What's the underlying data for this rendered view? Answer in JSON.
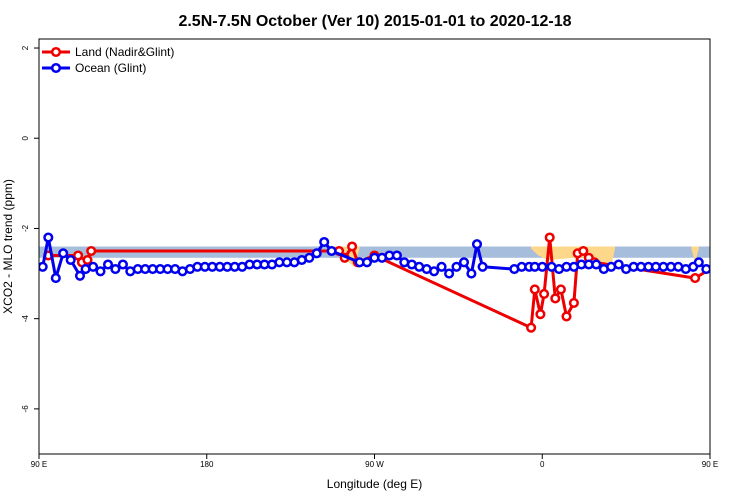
{
  "chart_data": {
    "type": "line",
    "title": "2.5N-7.5N October (Ver 10)   2015-01-01 to 2020-12-18",
    "xlabel": "Longitude (deg E)",
    "ylabel": "XCO2 - MLO trend (ppm)",
    "xlim": [
      90,
      450
    ],
    "ylim": [
      -7,
      2.2
    ],
    "x_ticks": [
      {
        "value": 90,
        "label": "90 E"
      },
      {
        "value": 180,
        "label": "180"
      },
      {
        "value": 270,
        "label": "90 W"
      },
      {
        "value": 360,
        "label": "0"
      },
      {
        "value": 450,
        "label": "90 E"
      },
      {
        "value": 540,
        "label": "180"
      }
    ],
    "y_ticks": [
      {
        "value": 2,
        "label": "2"
      },
      {
        "value": 0,
        "label": "0"
      },
      {
        "value": -2,
        "label": "-2"
      },
      {
        "value": -4,
        "label": "-4"
      },
      {
        "value": -6,
        "label": "-6"
      }
    ],
    "band": {
      "lower": -2.65,
      "upper": -2.4,
      "color": "#a6bddb"
    },
    "band_bulges": [
      {
        "x": [
          248,
          259,
          262
        ],
        "upper": -2.4,
        "lower": [
          -2.45,
          -2.85,
          -2.45
        ],
        "color": "#fdd88a"
      },
      {
        "x": [
          354,
          358,
          363,
          378,
          384,
          397,
          399
        ],
        "upper": -2.4,
        "lower": [
          -2.45,
          -2.6,
          -2.7,
          -2.65,
          -2.65,
          -2.85,
          -2.45
        ],
        "color": "#fdd88a"
      },
      {
        "x": [
          440,
          442,
          444
        ],
        "upper": -2.4,
        "lower": [
          -2.45,
          -2.75,
          -2.45
        ],
        "color": "#fdd88a"
      },
      {
        "x": [
          458,
          462,
          465,
          470
        ],
        "upper": -2.4,
        "lower": [
          -2.45,
          -2.75,
          -2.85,
          -2.45
        ],
        "color": "#fdd88a"
      }
    ],
    "legend": {
      "position": "top-left"
    },
    "grid": false,
    "series": [
      {
        "name": "Land (Nadir&Glint)",
        "color": "#ee0000",
        "points": [
          [
            95,
            -2.6
          ],
          [
            111,
            -2.6
          ],
          [
            113,
            -2.75
          ],
          [
            116,
            -2.7
          ],
          [
            118,
            -2.5
          ],
          [
            251,
            -2.5
          ],
          [
            254,
            -2.65
          ],
          [
            258,
            -2.4
          ],
          [
            261,
            -2.75
          ],
          [
            270,
            -2.6
          ],
          [
            354,
            -4.2
          ],
          [
            356,
            -3.35
          ],
          [
            359,
            -3.9
          ],
          [
            361,
            -3.45
          ],
          [
            364,
            -2.2
          ],
          [
            367,
            -3.55
          ],
          [
            370,
            -3.35
          ],
          [
            373,
            -3.95
          ],
          [
            377,
            -3.65
          ],
          [
            379,
            -2.55
          ],
          [
            382,
            -2.5
          ],
          [
            385,
            -2.65
          ],
          [
            388,
            -2.75
          ],
          [
            442,
            -3.1
          ],
          [
            460,
            -2.65
          ],
          [
            464,
            -2.55
          ],
          [
            467,
            -2.75
          ],
          [
            469,
            -2.5
          ]
        ]
      },
      {
        "name": "Ocean (Glint)",
        "color": "#0000ee",
        "points": [
          [
            92,
            -2.85
          ],
          [
            95,
            -2.2
          ],
          [
            99,
            -3.1
          ],
          [
            103,
            -2.55
          ],
          [
            107,
            -2.7
          ],
          [
            112,
            -3.05
          ],
          [
            115,
            -2.9
          ],
          [
            119,
            -2.85
          ],
          [
            123,
            -2.95
          ],
          [
            127,
            -2.8
          ],
          [
            131,
            -2.9
          ],
          [
            135,
            -2.8
          ],
          [
            139,
            -2.95
          ],
          [
            143,
            -2.9
          ],
          [
            147,
            -2.9
          ],
          [
            151,
            -2.9
          ],
          [
            155,
            -2.9
          ],
          [
            159,
            -2.9
          ],
          [
            163,
            -2.9
          ],
          [
            167,
            -2.95
          ],
          [
            171,
            -2.9
          ],
          [
            175,
            -2.85
          ],
          [
            179,
            -2.85
          ],
          [
            183,
            -2.85
          ],
          [
            187,
            -2.85
          ],
          [
            191,
            -2.85
          ],
          [
            195,
            -2.85
          ],
          [
            199,
            -2.85
          ],
          [
            203,
            -2.8
          ],
          [
            207,
            -2.8
          ],
          [
            211,
            -2.8
          ],
          [
            215,
            -2.8
          ],
          [
            219,
            -2.75
          ],
          [
            223,
            -2.75
          ],
          [
            227,
            -2.75
          ],
          [
            231,
            -2.7
          ],
          [
            235,
            -2.65
          ],
          [
            239,
            -2.55
          ],
          [
            243,
            -2.3
          ],
          [
            247,
            -2.5
          ],
          [
            262,
            -2.75
          ],
          [
            266,
            -2.75
          ],
          [
            270,
            -2.65
          ],
          [
            274,
            -2.65
          ],
          [
            278,
            -2.6
          ],
          [
            282,
            -2.6
          ],
          [
            286,
            -2.75
          ],
          [
            290,
            -2.8
          ],
          [
            294,
            -2.85
          ],
          [
            298,
            -2.9
          ],
          [
            302,
            -2.95
          ],
          [
            306,
            -2.85
          ],
          [
            310,
            -3.0
          ],
          [
            314,
            -2.85
          ],
          [
            318,
            -2.75
          ],
          [
            322,
            -3.0
          ],
          [
            325,
            -2.35
          ],
          [
            328,
            -2.85
          ],
          [
            345,
            -2.9
          ],
          [
            349,
            -2.85
          ],
          [
            353,
            -2.85
          ],
          [
            356,
            -2.85
          ],
          [
            360,
            -2.85
          ],
          [
            365,
            -2.85
          ],
          [
            369,
            -2.9
          ],
          [
            373,
            -2.85
          ],
          [
            377,
            -2.85
          ],
          [
            381,
            -2.8
          ],
          [
            385,
            -2.8
          ],
          [
            389,
            -2.8
          ],
          [
            393,
            -2.9
          ],
          [
            397,
            -2.85
          ],
          [
            401,
            -2.8
          ],
          [
            405,
            -2.9
          ],
          [
            409,
            -2.85
          ],
          [
            413,
            -2.85
          ],
          [
            417,
            -2.85
          ],
          [
            421,
            -2.85
          ],
          [
            425,
            -2.85
          ],
          [
            429,
            -2.85
          ],
          [
            433,
            -2.85
          ],
          [
            437,
            -2.9
          ],
          [
            441,
            -2.85
          ],
          [
            444,
            -2.75
          ],
          [
            448,
            -2.9
          ]
        ]
      }
    ]
  }
}
